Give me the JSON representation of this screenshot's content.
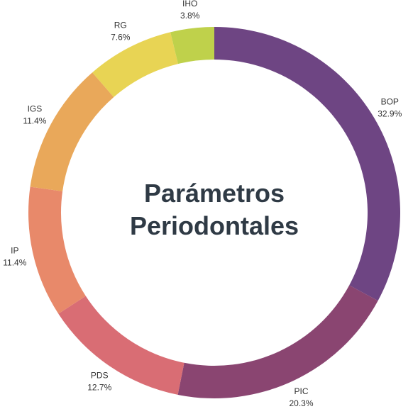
{
  "chart_data": {
    "type": "donut",
    "title": "Parámetros Periodontales",
    "categories": [
      "BOP",
      "PIC",
      "PDS",
      "IP",
      "IGS",
      "RG",
      "IHO"
    ],
    "values": [
      32.9,
      20.3,
      12.7,
      11.4,
      11.4,
      7.6,
      3.8
    ],
    "value_labels": [
      "32.9%",
      "20.3%",
      "12.7%",
      "11.4%",
      "11.4%",
      "7.6%",
      "3.8%"
    ],
    "colors": [
      "#6e4583",
      "#8a4571",
      "#d96d74",
      "#e8896a",
      "#e9a85a",
      "#e8d454",
      "#bfd14b"
    ]
  }
}
